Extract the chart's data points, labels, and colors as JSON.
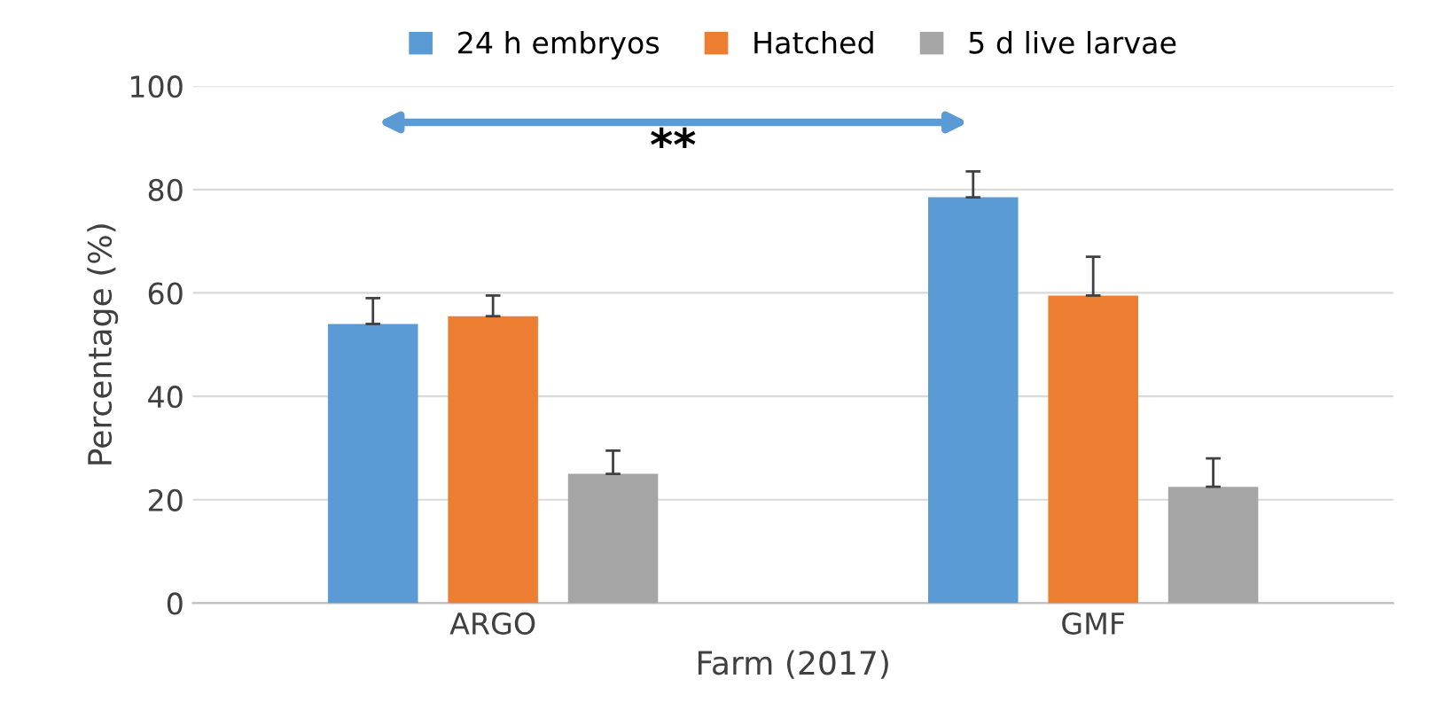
{
  "chart_data": {
    "type": "bar",
    "xlabel": "Farm (2017)",
    "ylabel": "Percentage (%)",
    "categories": [
      "ARGO",
      "GMF"
    ],
    "series": [
      {
        "name": "24 h embryos",
        "color": "#5b9bd5",
        "values": [
          54,
          78.5
        ],
        "errors": [
          [
            54,
            59
          ],
          [
            78.5,
            83.5
          ]
        ]
      },
      {
        "name": "Hatched",
        "color": "#ed7d31",
        "values": [
          55.5,
          59.5
        ],
        "errors": [
          [
            55.5,
            59.5
          ],
          [
            59.5,
            67
          ]
        ]
      },
      {
        "name": "5 d live larvae",
        "color": "#a5a5a5",
        "values": [
          25,
          22.5
        ],
        "errors": [
          [
            25,
            29.5
          ],
          [
            22.5,
            28
          ]
        ]
      }
    ],
    "ylim": [
      0,
      100
    ],
    "yticks": [
      0,
      20,
      40,
      60,
      80,
      100
    ],
    "grid": "y",
    "legend": "top",
    "annotations": [
      "**"
    ]
  }
}
